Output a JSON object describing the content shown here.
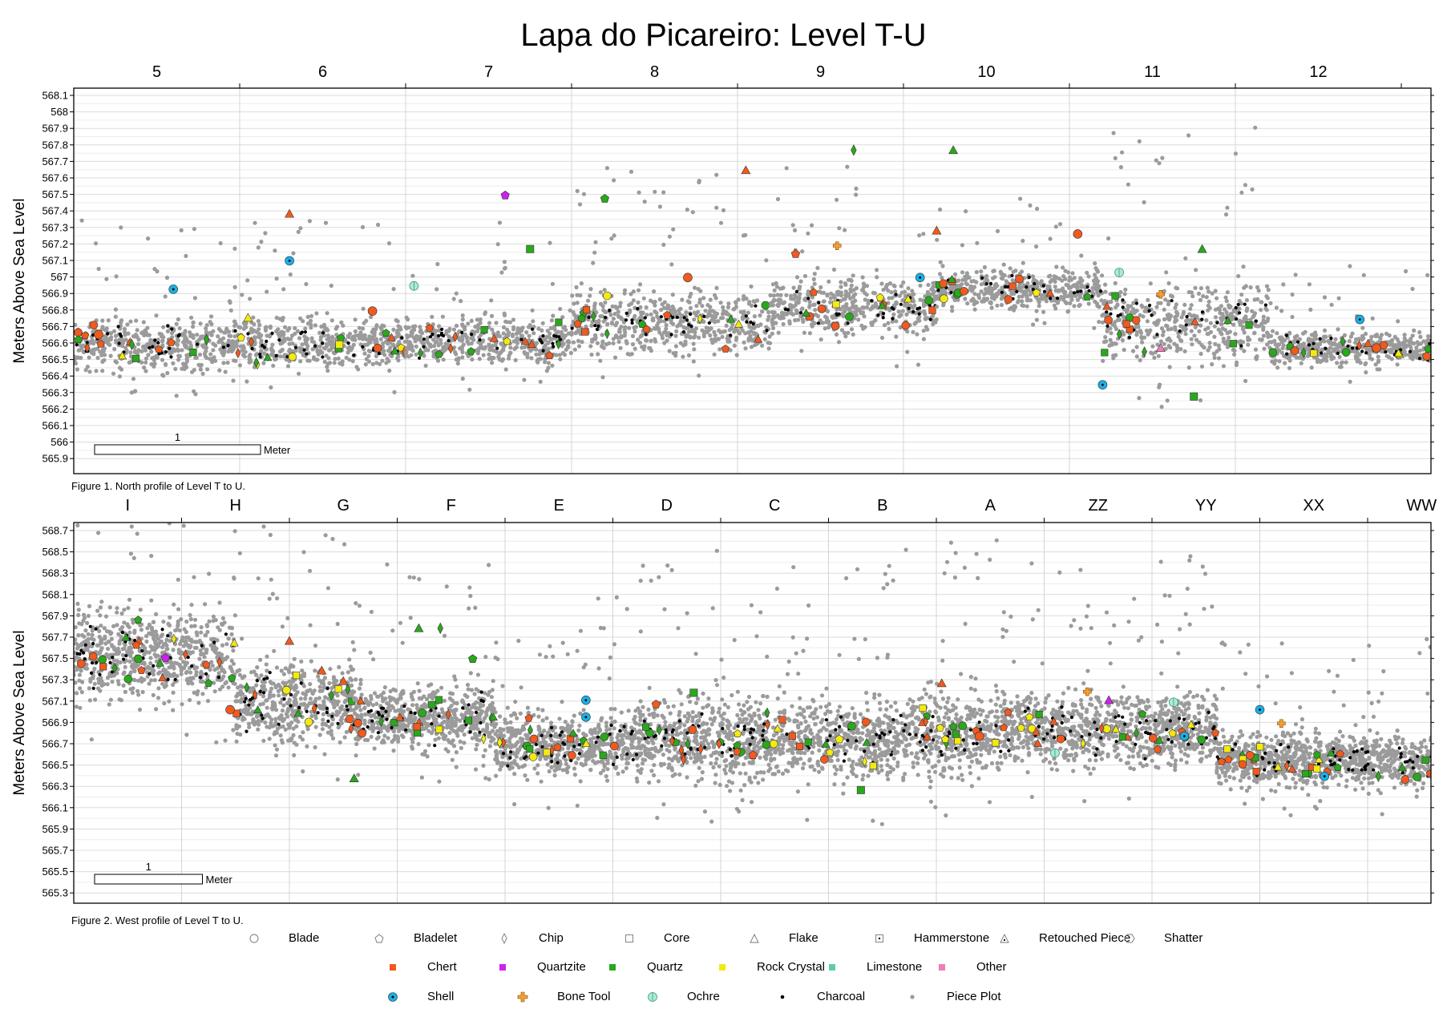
{
  "title": "Lapa do Picareiro: Level T-U",
  "chart_data": [
    {
      "type": "scatter",
      "panel": "north",
      "caption": "Figure 1. North profile of Level T to U.",
      "ylabel": "Meters Above Sea Level",
      "ylim": [
        565.85,
        568.15
      ],
      "y_ticks": [
        "568.1",
        "568",
        "567.9",
        "567.8",
        "567.7",
        "567.6",
        "567.5",
        "567.4",
        "567.3",
        "567.2",
        "567.1",
        "567",
        "566.9",
        "566.8",
        "566.7",
        "566.6",
        "566.5",
        "566.4",
        "566.3",
        "566.2",
        "566.1",
        "566",
        "565.9"
      ],
      "x_units": [
        "5",
        "6",
        "7",
        "8",
        "9",
        "10",
        "11",
        "12"
      ],
      "scale_label": "1",
      "scale_unit": "Meter",
      "piece_plot_bands": [
        {
          "x0": 0.0,
          "x1": 1.0,
          "y": 566.62,
          "spread": 0.18
        },
        {
          "x0": 1.0,
          "x1": 2.0,
          "y": 566.62,
          "spread": 0.18
        },
        {
          "x0": 2.0,
          "x1": 3.0,
          "y": 566.64,
          "spread": 0.17
        },
        {
          "x0": 3.0,
          "x1": 4.2,
          "y": 566.75,
          "spread": 0.22
        },
        {
          "x0": 4.2,
          "x1": 5.2,
          "y": 566.85,
          "spread": 0.2
        },
        {
          "x0": 5.2,
          "x1": 6.2,
          "y": 566.95,
          "spread": 0.14
        },
        {
          "x0": 6.2,
          "x1": 7.2,
          "y": 566.75,
          "spread": 0.28
        },
        {
          "x0": 7.2,
          "x1": 8.2,
          "y": 566.6,
          "spread": 0.12
        }
      ],
      "artifacts": [
        {
          "x": 0.15,
          "y": 566.68,
          "type": "blade",
          "material": "chert"
        },
        {
          "x": 0.35,
          "y": 566.62,
          "type": "chip",
          "material": "quartz"
        },
        {
          "x": 0.6,
          "y": 566.95,
          "type": "blade",
          "material": "shell"
        },
        {
          "x": 0.8,
          "y": 566.65,
          "type": "chip",
          "material": "quartz"
        },
        {
          "x": 1.05,
          "y": 566.78,
          "type": "flake",
          "material": "rock-crystal"
        },
        {
          "x": 1.3,
          "y": 567.4,
          "type": "flake",
          "material": "chert"
        },
        {
          "x": 1.3,
          "y": 567.12,
          "type": "blade",
          "material": "shell"
        },
        {
          "x": 1.6,
          "y": 566.62,
          "type": "core",
          "material": "rock-crystal"
        },
        {
          "x": 1.8,
          "y": 566.82,
          "type": "blade",
          "material": "chert"
        },
        {
          "x": 2.05,
          "y": 566.97,
          "type": "blade",
          "material": "ochre"
        },
        {
          "x": 2.6,
          "y": 567.51,
          "type": "bladelet",
          "material": "quartzite"
        },
        {
          "x": 2.75,
          "y": 567.19,
          "type": "core",
          "material": "quartz"
        },
        {
          "x": 3.2,
          "y": 567.49,
          "type": "bladelet",
          "material": "quartz"
        },
        {
          "x": 3.7,
          "y": 567.02,
          "type": "blade",
          "material": "chert"
        },
        {
          "x": 4.05,
          "y": 567.66,
          "type": "flake",
          "material": "chert"
        },
        {
          "x": 4.35,
          "y": 567.16,
          "type": "bladelet",
          "material": "chert"
        },
        {
          "x": 4.6,
          "y": 567.21,
          "type": "bone",
          "material": "bone"
        },
        {
          "x": 4.7,
          "y": 567.78,
          "type": "chip",
          "material": "quartz"
        },
        {
          "x": 5.2,
          "y": 567.3,
          "type": "flake",
          "material": "chert"
        },
        {
          "x": 5.3,
          "y": 567.78,
          "type": "flake",
          "material": "quartz"
        },
        {
          "x": 5.1,
          "y": 567.02,
          "type": "blade",
          "material": "shell"
        },
        {
          "x": 6.05,
          "y": 567.28,
          "type": "blade",
          "material": "chert"
        },
        {
          "x": 6.3,
          "y": 567.05,
          "type": "blade",
          "material": "ochre"
        },
        {
          "x": 6.55,
          "y": 566.92,
          "type": "bone",
          "material": "bone"
        },
        {
          "x": 6.2,
          "y": 566.38,
          "type": "blade",
          "material": "shell"
        },
        {
          "x": 6.55,
          "y": 566.6,
          "type": "flake",
          "material": "other"
        },
        {
          "x": 6.8,
          "y": 567.19,
          "type": "flake",
          "material": "quartz"
        },
        {
          "x": 6.75,
          "y": 566.31,
          "type": "core",
          "material": "quartz"
        },
        {
          "x": 7.75,
          "y": 566.77,
          "type": "blade",
          "material": "shell"
        },
        {
          "x": 7.85,
          "y": 566.6,
          "type": "blade",
          "material": "chert"
        }
      ]
    },
    {
      "type": "scatter",
      "panel": "west",
      "caption": "Figure 2. West profile of Level T to U.",
      "ylabel": "Meters Above Sea Level",
      "ylim": [
        565.2,
        568.8
      ],
      "y_ticks": [
        "568.7",
        "568.5",
        "568.3",
        "568.1",
        "567.9",
        "567.7",
        "567.5",
        "567.3",
        "567.1",
        "566.9",
        "566.7",
        "566.5",
        "566.3",
        "566.1",
        "565.9",
        "565.7",
        "565.5",
        "565.3"
      ],
      "x_units": [
        "I",
        "H",
        "G",
        "F",
        "E",
        "D",
        "C",
        "B",
        "A",
        "ZZ",
        "YY",
        "XX",
        "WW"
      ],
      "scale_label": "1",
      "scale_unit": "Meter",
      "piece_plot_bands": [
        {
          "x0": 0.0,
          "x1": 1.5,
          "y": 567.55,
          "spread": 0.5
        },
        {
          "x0": 1.5,
          "x1": 2.6,
          "y": 567.1,
          "spread": 0.45
        },
        {
          "x0": 2.6,
          "x1": 3.9,
          "y": 566.95,
          "spread": 0.35
        },
        {
          "x0": 3.9,
          "x1": 5.2,
          "y": 566.7,
          "spread": 0.35
        },
        {
          "x0": 5.2,
          "x1": 7.6,
          "y": 566.75,
          "spread": 0.45
        },
        {
          "x0": 7.6,
          "x1": 8.6,
          "y": 566.8,
          "spread": 0.45
        },
        {
          "x0": 8.6,
          "x1": 10.6,
          "y": 566.85,
          "spread": 0.4
        },
        {
          "x0": 10.6,
          "x1": 12.9,
          "y": 566.55,
          "spread": 0.3
        }
      ],
      "artifacts": [
        {
          "x": 0.85,
          "y": 567.52,
          "type": "bladelet",
          "material": "quartzite"
        },
        {
          "x": 1.45,
          "y": 567.03,
          "type": "blade",
          "material": "chert"
        },
        {
          "x": 2.0,
          "y": 567.68,
          "type": "flake",
          "material": "chert"
        },
        {
          "x": 2.3,
          "y": 567.4,
          "type": "flake",
          "material": "chert"
        },
        {
          "x": 2.5,
          "y": 567.3,
          "type": "flake",
          "material": "chert"
        },
        {
          "x": 2.6,
          "y": 566.38,
          "type": "flake",
          "material": "quartz"
        },
        {
          "x": 3.2,
          "y": 567.8,
          "type": "flake",
          "material": "quartz"
        },
        {
          "x": 3.4,
          "y": 567.8,
          "type": "chip",
          "material": "quartz"
        },
        {
          "x": 3.7,
          "y": 567.51,
          "type": "bladelet",
          "material": "quartz"
        },
        {
          "x": 3.95,
          "y": 566.72,
          "type": "chip",
          "material": "rock-crystal"
        },
        {
          "x": 4.75,
          "y": 567.12,
          "type": "blade",
          "material": "shell"
        },
        {
          "x": 4.75,
          "y": 566.96,
          "type": "blade",
          "material": "shell"
        },
        {
          "x": 5.4,
          "y": 567.08,
          "type": "bladelet",
          "material": "chert"
        },
        {
          "x": 5.75,
          "y": 567.19,
          "type": "core",
          "material": "quartz"
        },
        {
          "x": 6.3,
          "y": 566.6,
          "type": "bladelet",
          "material": "chert"
        },
        {
          "x": 7.1,
          "y": 566.75,
          "type": "bladelet",
          "material": "rock-crystal"
        },
        {
          "x": 7.3,
          "y": 566.27,
          "type": "core",
          "material": "quartz"
        },
        {
          "x": 8.05,
          "y": 567.28,
          "type": "flake",
          "material": "chert"
        },
        {
          "x": 8.4,
          "y": 566.78,
          "type": "blade",
          "material": "chert"
        },
        {
          "x": 9.1,
          "y": 566.62,
          "type": "blade",
          "material": "ochre"
        },
        {
          "x": 9.4,
          "y": 567.2,
          "type": "bone",
          "material": "bone"
        },
        {
          "x": 9.6,
          "y": 567.12,
          "type": "flake",
          "material": "quartzite"
        },
        {
          "x": 10.2,
          "y": 567.1,
          "type": "blade",
          "material": "ochre"
        },
        {
          "x": 10.3,
          "y": 566.78,
          "type": "blade",
          "material": "shell"
        },
        {
          "x": 11.0,
          "y": 567.03,
          "type": "blade",
          "material": "shell"
        },
        {
          "x": 11.2,
          "y": 566.9,
          "type": "bone",
          "material": "bone"
        },
        {
          "x": 11.6,
          "y": 566.4,
          "type": "blade",
          "material": "shell"
        },
        {
          "x": 12.1,
          "y": 566.4,
          "type": "chip",
          "material": "quartz"
        }
      ]
    }
  ],
  "legend": {
    "types": [
      "Blade",
      "Bladelet",
      "Chip",
      "Core",
      "Flake",
      "Hammerstone",
      "Retouched Piece",
      "Shatter"
    ],
    "materials": [
      {
        "label": "Chert",
        "color": "#f05a1e"
      },
      {
        "label": "Quartzite",
        "color": "#cc22ee"
      },
      {
        "label": "Quartz",
        "color": "#2aa81c"
      },
      {
        "label": "Rock Crystal",
        "color": "#f2ea10"
      },
      {
        "label": "Limestone",
        "color": "#5ccfa0"
      },
      {
        "label": "Other",
        "color": "#f07cb8"
      }
    ],
    "others": [
      "Shell",
      "Bone Tool",
      "Ochre",
      "Charcoal",
      "Piece Plot"
    ]
  },
  "colors": {
    "shell": "#1ab0e8",
    "bone": "#f0a030",
    "ochre": "#a8ecd8",
    "charcoal": "#000000",
    "piece_plot": "#9b9b9b"
  }
}
